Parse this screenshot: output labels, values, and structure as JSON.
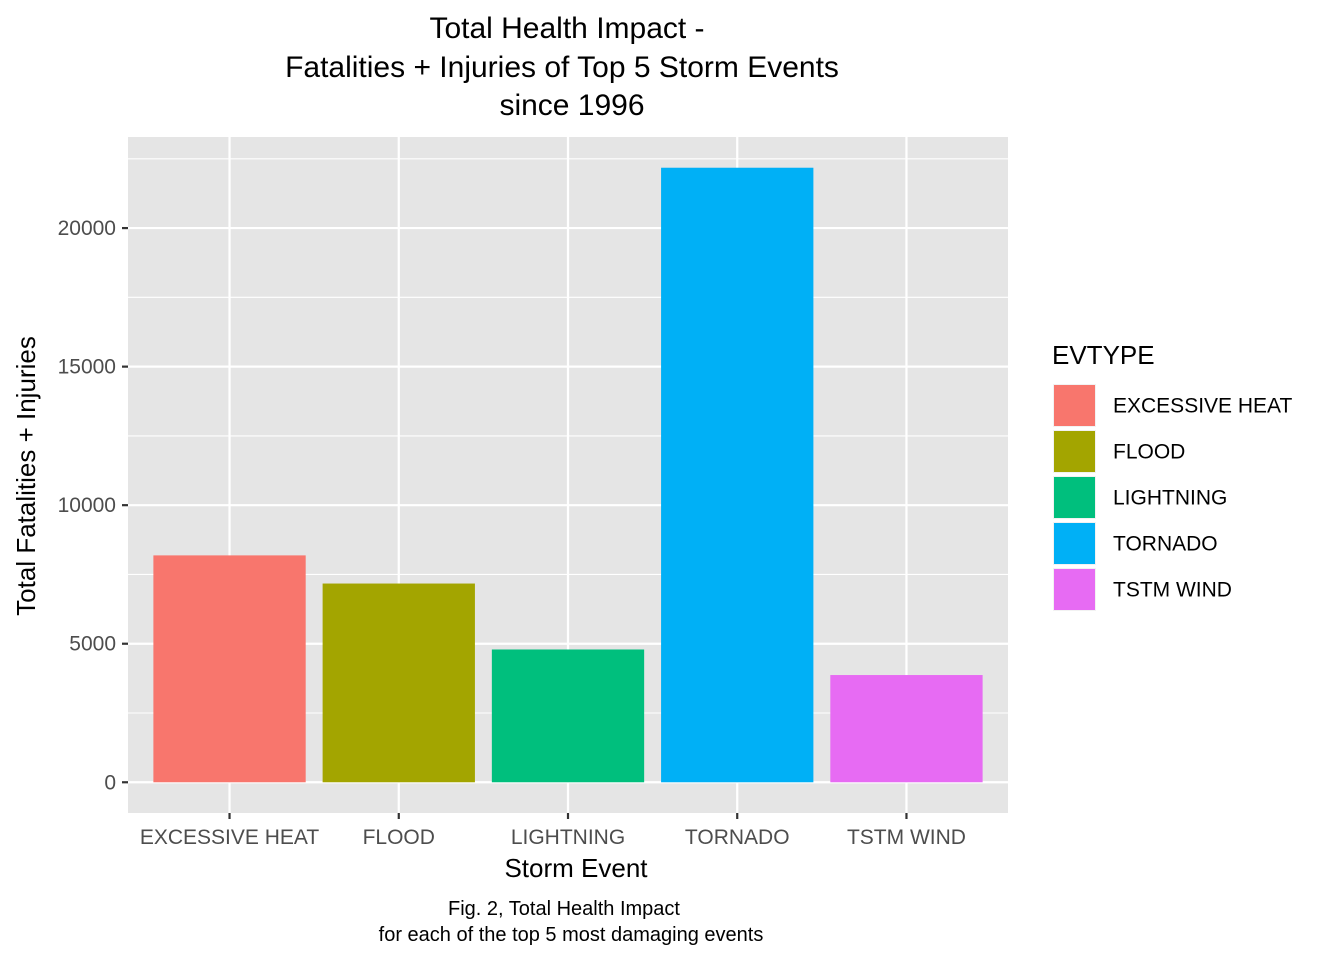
{
  "chart_data": {
    "type": "bar",
    "title": [
      "Total Health Impact -",
      "Fatalities + Injuries of Top 5 Storm Events",
      "since 1996"
    ],
    "xlabel": "Storm Event",
    "ylabel": "Total Fatalities + Injuries",
    "categories": [
      "EXCESSIVE HEAT",
      "FLOOD",
      "LIGHTNING",
      "TORNADO",
      "TSTM WIND"
    ],
    "values": [
      8188,
      7172,
      4792,
      22178,
      3870
    ],
    "colors": [
      "#F8766D",
      "#A3A500",
      "#00BF7D",
      "#00B0F6",
      "#E76BF3"
    ],
    "ylim": [
      -1109,
      23287
    ],
    "yticks": [
      0,
      5000,
      10000,
      15000,
      20000
    ],
    "ytick_labels": [
      "0",
      "5000",
      "10000",
      "15000",
      "20000"
    ],
    "grid": true,
    "legend": {
      "title": "EVTYPE",
      "position": "right",
      "items": [
        "EXCESSIVE HEAT",
        "FLOOD",
        "LIGHTNING",
        "TORNADO",
        "TSTM WIND"
      ]
    },
    "caption": [
      "Fig. 2, Total Health Impact",
      "for each of the top 5 most damaging events"
    ]
  }
}
